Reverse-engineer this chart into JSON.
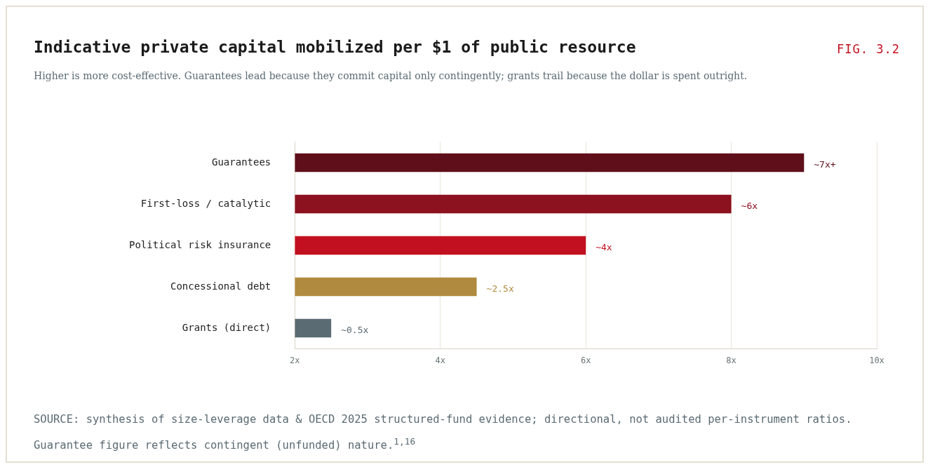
{
  "chart_data": {
    "type": "bar",
    "orientation": "horizontal",
    "title": "Indicative private capital mobilized per $1 of public resource",
    "subtitle": "Higher is more cost-effective. Guarantees lead because they commit capital only contingently; grants trail because the dollar is spent outright.",
    "annotations": [
      "FIG. 3.2",
      "SOURCE: synthesis of size-leverage data & OECD 2025 structured-fund evidence; directional, not audited per-instrument ratios. Guarantee figure reflects contingent (unfunded) nature.$^{1,16}$"
    ],
    "categories": [
      "Guarantees",
      "First-loss / catalytic",
      "Political risk insurance",
      "Concessional debt",
      "Grants (direct)"
    ],
    "values": [
      7,
      6,
      4,
      2.5,
      0.5
    ],
    "base": [
      2,
      2,
      2,
      2,
      2
    ],
    "colors": [
      "#5e0f1a",
      "#8c1220",
      "#c21020",
      "#b08a3e",
      "#5b6b73"
    ],
    "value_labels": [
      "~7x+",
      "~6x",
      "~4x",
      "~2.5x",
      "~0.5x"
    ],
    "xlim": [
      2,
      10
    ],
    "xticks": [
      {
        "value": 2,
        "label": "2x"
      },
      {
        "value": 4,
        "label": "4x"
      },
      {
        "value": 6,
        "label": "6x"
      },
      {
        "value": 8,
        "label": "8x"
      },
      {
        "value": 10,
        "label": "10x"
      }
    ],
    "grid": "x",
    "legend": false
  }
}
